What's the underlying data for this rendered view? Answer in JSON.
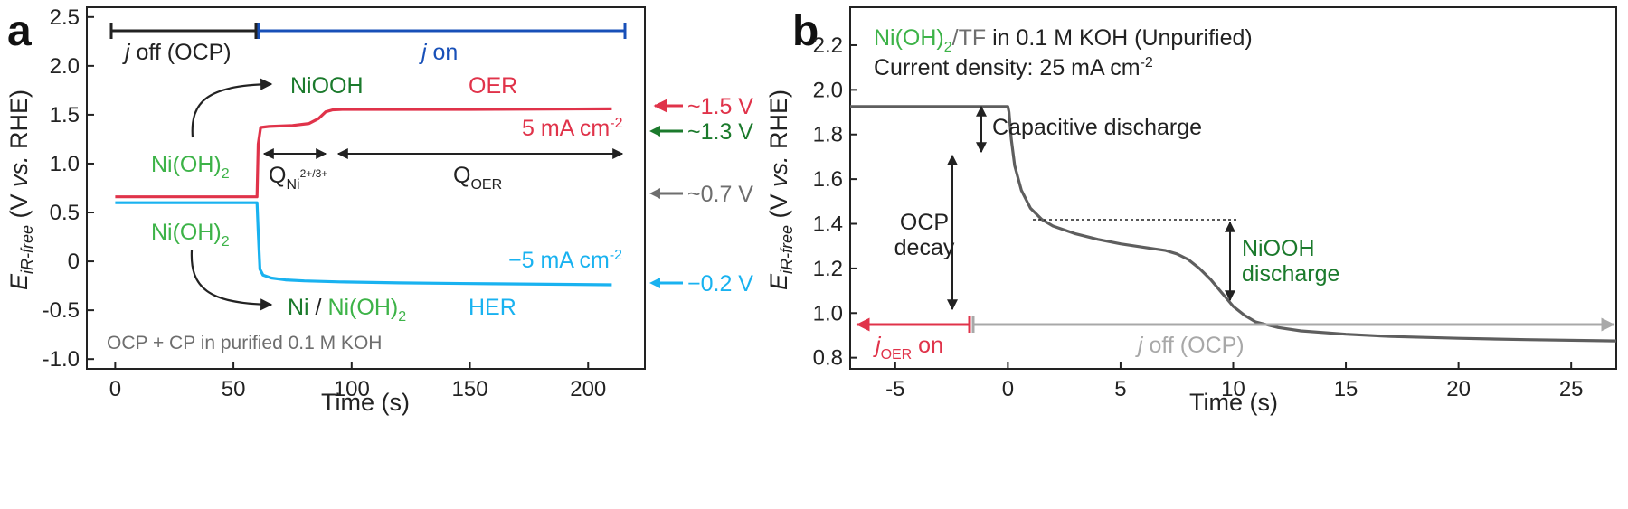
{
  "colors": {
    "red": "#e0334a",
    "blue": "#19b2f0",
    "dark_blue": "#1850b8",
    "green_light": "#3db348",
    "green_dark": "#1b7a2c",
    "gray_label": "#6e6e6e",
    "gray_curve": "#5e5e5e",
    "gray_arrow": "#a8a8a8",
    "black": "#222222"
  },
  "chart_data": [
    {
      "panel_label": "a",
      "type": "line",
      "xlabel": "Time (s)",
      "ylabel_main": "E",
      "ylabel_sub": "iR-free",
      "ylabel_rest": " (V vs. RHE)",
      "ylabel_parts": [
        "V ",
        "vs.",
        " RHE)"
      ],
      "xlim": [
        -12,
        224
      ],
      "ylim": [
        -1.1,
        2.6
      ],
      "xticks": [
        0,
        50,
        100,
        150,
        200
      ],
      "yticks": [
        -1.0,
        -0.5,
        0,
        0.5,
        1.0,
        1.5,
        2.0,
        2.5
      ],
      "ytick_labels": [
        "-1.0",
        "-0.5",
        "0",
        "0.5",
        "1.0",
        "1.5",
        "2.0",
        "2.5"
      ],
      "xtick_labels": [
        "0",
        "50",
        "100",
        "150",
        "200"
      ],
      "series": [
        {
          "name": "5 mA cm-2",
          "color": "#e0334a",
          "x": [
            0,
            60,
            60.5,
            61.5,
            65,
            75,
            82,
            86,
            89,
            92,
            96,
            110,
            150,
            210
          ],
          "y": [
            0.66,
            0.66,
            1.2,
            1.37,
            1.38,
            1.39,
            1.41,
            1.46,
            1.53,
            1.55,
            1.555,
            1.555,
            1.555,
            1.56
          ]
        },
        {
          "name": "-5 mA cm-2",
          "color": "#19b2f0",
          "x": [
            0,
            60,
            60.5,
            61.2,
            62.5,
            66,
            72,
            80,
            95,
            120,
            160,
            210
          ],
          "y": [
            0.6,
            0.6,
            0.3,
            -0.08,
            -0.14,
            -0.17,
            -0.19,
            -0.2,
            -0.21,
            -0.22,
            -0.23,
            -0.24
          ]
        }
      ],
      "labels": {
        "j_off_prefix": "j",
        "j_off_text": " off (OCP)",
        "j_on_prefix": "j",
        "j_on_text": " on",
        "nioh2_top": "Ni(OH)",
        "nioh2_top_sub": "2",
        "nioh2_bottom": "Ni(OH)",
        "nioh2_bottom_sub": "2",
        "niooh": "NiOOH",
        "oer": "OER",
        "her": "HER",
        "current_pos": "5 mA cm",
        "current_pos_sup": "-2",
        "current_neg": "−5 mA cm",
        "current_neg_sup": "-2",
        "q_ni": "Q",
        "q_ni_sub": "Ni",
        "q_ni_sup": "2+/3+",
        "q_oer": "Q",
        "q_oer_sub": "OER",
        "ni_prod_ni": "Ni",
        "ni_prod_slash": " / ",
        "ni_prod_oh": "Ni(OH)",
        "ni_prod_sub": "2",
        "footer": "OCP + CP in purified 0.1 M KOH",
        "v_15": "~1.5 V",
        "v_13": "~1.3 V",
        "v_07": "~0.7 V",
        "v_m02": "−0.2 V"
      }
    },
    {
      "panel_label": "b",
      "type": "line",
      "xlabel": "Time (s)",
      "ylabel_main": "E",
      "ylabel_sub": "iR-free",
      "ylabel_parts": [
        "V ",
        "vs.",
        " RHE)"
      ],
      "xlim": [
        -7,
        27
      ],
      "ylim": [
        0.75,
        2.37
      ],
      "xticks": [
        -5,
        0,
        5,
        10,
        15,
        20,
        25
      ],
      "xtick_labels": [
        "-5",
        "0",
        "5",
        "10",
        "15",
        "20",
        "25"
      ],
      "yticks": [
        0.8,
        1.0,
        1.2,
        1.4,
        1.6,
        1.8,
        2.0,
        2.2
      ],
      "ytick_labels": [
        "0.8",
        "1.0",
        "1.2",
        "1.4",
        "1.6",
        "1.8",
        "2.0",
        "2.2"
      ],
      "series": [
        {
          "name": "",
          "color": "#5e5e5e",
          "x": [
            -7,
            -3,
            -1,
            0,
            0.05,
            0.15,
            0.3,
            0.6,
            1,
            1.5,
            2,
            3,
            4,
            5,
            6,
            7,
            7.5,
            8,
            8.5,
            9,
            9.5,
            10,
            10.5,
            11,
            12,
            13,
            15,
            17,
            20,
            23,
            27
          ],
          "y": [
            1.925,
            1.925,
            1.925,
            1.925,
            1.9,
            1.78,
            1.66,
            1.55,
            1.47,
            1.42,
            1.39,
            1.355,
            1.33,
            1.31,
            1.295,
            1.28,
            1.265,
            1.24,
            1.2,
            1.15,
            1.09,
            1.03,
            0.99,
            0.96,
            0.935,
            0.92,
            0.905,
            0.895,
            0.887,
            0.881,
            0.875
          ]
        }
      ],
      "labels": {
        "title_ni": "Ni(OH)",
        "title_ni_sub": "2",
        "title_tf": "/TF",
        "title_rest": " in 0.1 M KOH (Unpurified)",
        "current_density": "Current density: 25 mA cm",
        "current_density_sup": "-2",
        "capacitive": "Capacitive discharge",
        "ocp_line1": "OCP",
        "ocp_line2": "decay",
        "niooh_line1": "NiOOH",
        "niooh_line2": "discharge",
        "joer_prefix": "j",
        "joer_sub": "OER",
        "joer_text": " on",
        "joff_prefix": "j",
        "joff_text": " off (OCP)"
      }
    }
  ]
}
